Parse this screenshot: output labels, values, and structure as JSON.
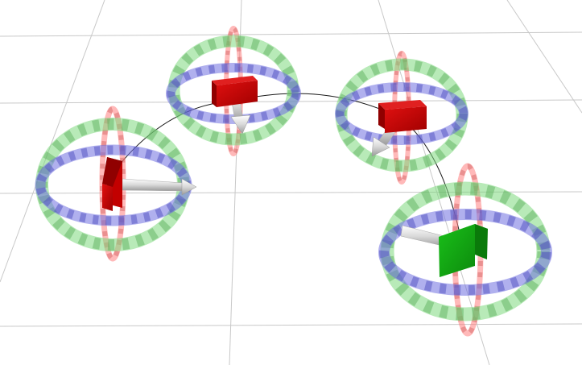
{
  "scene": {
    "background": "#ffffff",
    "colors": {
      "grid": "#c8c8c8",
      "path": "#1a1a1a",
      "ring_x": "#ff8080",
      "ring_y": "#7ed87e",
      "ring_z": "#7070e0",
      "ring_tri_x": "#d06060",
      "ring_tri_y": "#5fb25f",
      "ring_tri_z": "#5050c0",
      "pose_box": "#cc0000",
      "goal_box": "#11a611",
      "arrow": "#d8d8d8"
    },
    "markers": [
      {
        "id": "pose-1",
        "kind": "pose",
        "icon": "interactive-pose-marker"
      },
      {
        "id": "pose-2",
        "kind": "pose",
        "icon": "interactive-pose-marker"
      },
      {
        "id": "pose-3",
        "kind": "pose",
        "icon": "interactive-pose-marker"
      },
      {
        "id": "goal",
        "kind": "goal",
        "icon": "interactive-goal-marker"
      }
    ]
  }
}
